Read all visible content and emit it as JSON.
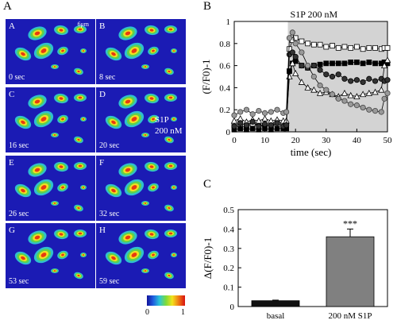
{
  "figure": {
    "panel_a": {
      "letter": "A",
      "scale_label": "6μm",
      "tiles": [
        {
          "letter": "A",
          "time": "0 sec"
        },
        {
          "letter": "B",
          "time": "8 sec"
        },
        {
          "letter": "C",
          "time": "16  sec"
        },
        {
          "letter": "D",
          "time": "20 sec",
          "note_line1": "S1P",
          "note_line2": "200 nM"
        },
        {
          "letter": "E",
          "time": "26 sec"
        },
        {
          "letter": "F",
          "time": "32 sec"
        },
        {
          "letter": "G",
          "time": "53 sec"
        },
        {
          "letter": "H",
          "time": "59 sec"
        }
      ],
      "colorbar": {
        "min_label": "0",
        "max_label": "1"
      }
    },
    "panel_b_letter": "B",
    "panel_c_letter": "C"
  },
  "chart_data": [
    {
      "type": "line",
      "panel": "B",
      "annotation": "S1P 200 nM",
      "stimulus_window": [
        17.5,
        50
      ],
      "xlabel": "time (sec)",
      "ylabel": "(F/F0)-1",
      "xlim": [
        0,
        50
      ],
      "ylim": [
        0,
        1
      ],
      "xticks": [
        "0",
        "10",
        "20",
        "30",
        "40",
        "50"
      ],
      "yticks": [
        "0",
        "0.2",
        "0.4",
        "0.6",
        "0.8",
        "1"
      ],
      "x": [
        0,
        2,
        4,
        6,
        8,
        10,
        12,
        14,
        16,
        17,
        18,
        19,
        20,
        22,
        24,
        26,
        28,
        30,
        32,
        34,
        36,
        38,
        40,
        42,
        44,
        46,
        48,
        49,
        50
      ],
      "series": [
        {
          "marker": "open-square",
          "values": [
            0.06,
            0.04,
            0.05,
            0.07,
            0.05,
            0.06,
            0.05,
            0.07,
            0.06,
            0.06,
            0.75,
            0.83,
            0.85,
            0.82,
            0.8,
            0.79,
            0.79,
            0.77,
            0.78,
            0.76,
            0.77,
            0.76,
            0.77,
            0.75,
            0.76,
            0.76,
            0.75,
            0.76,
            0.76
          ]
        },
        {
          "marker": "filled-square",
          "values": [
            0.02,
            0.03,
            0.02,
            0.03,
            0.02,
            0.03,
            0.02,
            0.03,
            0.03,
            0.03,
            0.55,
            0.62,
            0.64,
            0.6,
            0.58,
            0.6,
            0.61,
            0.62,
            0.62,
            0.62,
            0.62,
            0.63,
            0.63,
            0.62,
            0.63,
            0.62,
            0.62,
            0.63,
            0.62
          ]
        },
        {
          "marker": "open-triangle",
          "values": [
            0.1,
            0.12,
            0.09,
            0.11,
            0.1,
            0.12,
            0.1,
            0.11,
            0.1,
            0.1,
            0.5,
            0.62,
            0.53,
            0.45,
            0.4,
            0.38,
            0.35,
            0.36,
            0.34,
            0.32,
            0.35,
            0.33,
            0.32,
            0.34,
            0.35,
            0.36,
            0.38,
            0.6,
            0.65
          ]
        },
        {
          "marker": "filled-circle",
          "values": [
            0.05,
            0.08,
            0.06,
            0.09,
            0.05,
            0.07,
            0.06,
            0.08,
            0.05,
            0.06,
            0.7,
            0.72,
            0.68,
            0.6,
            0.58,
            0.6,
            0.56,
            0.52,
            0.5,
            0.52,
            0.48,
            0.46,
            0.47,
            0.45,
            0.48,
            0.46,
            0.48,
            0.46,
            0.47
          ]
        },
        {
          "marker": "gray-circle",
          "values": [
            0.15,
            0.18,
            0.2,
            0.16,
            0.19,
            0.17,
            0.18,
            0.2,
            0.17,
            0.18,
            0.85,
            0.9,
            0.8,
            0.72,
            0.6,
            0.5,
            0.42,
            0.38,
            0.34,
            0.3,
            0.28,
            0.25,
            0.24,
            0.22,
            0.2,
            0.19,
            0.18,
            0.3,
            0.35
          ]
        }
      ]
    },
    {
      "type": "bar",
      "panel": "C",
      "categories": [
        "basal",
        "200 nM S1P"
      ],
      "values": [
        0.03,
        0.36
      ],
      "errors": [
        0.003,
        0.04
      ],
      "colors": [
        "#111111",
        "#808080"
      ],
      "significance": [
        "",
        "***"
      ],
      "ylabel": "Δ(F/F0)-1",
      "ylim": [
        0,
        0.5
      ],
      "yticks": [
        "0",
        "0.1",
        "0.2",
        "0.3",
        "0.4",
        "0.5"
      ]
    }
  ]
}
